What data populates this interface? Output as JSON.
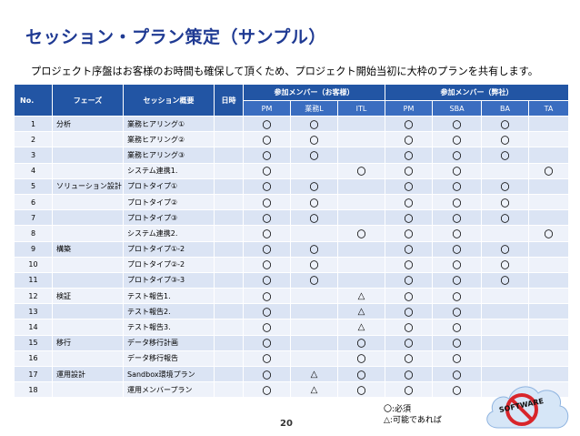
{
  "title": "セッション・プラン策定（サンプル）",
  "subtitle": "プロジェクト序盤はお客様のお時間も確保して頂くため、プロジェクト開始当初に大枠のプランを共有します。",
  "table": {
    "headers": {
      "no": "No.",
      "phase": "フェーズ",
      "session": "セッション概要",
      "date": "日時",
      "client_group": "参加メンバー（お客様）",
      "company_group": "参加メンバー（弊社）"
    },
    "subheaders": {
      "client": [
        "PM",
        "業務L",
        "ITL"
      ],
      "company": [
        "PM",
        "SBA",
        "BA",
        "TA"
      ]
    },
    "rows": [
      {
        "no": "1",
        "phase": "分析",
        "session": "業務ヒアリング①",
        "date": "",
        "marks": [
          "〇",
          "〇",
          "",
          "〇",
          "〇",
          "〇",
          ""
        ]
      },
      {
        "no": "2",
        "phase": "",
        "session": "業務ヒアリング②",
        "date": "",
        "marks": [
          "〇",
          "〇",
          "",
          "〇",
          "〇",
          "〇",
          ""
        ]
      },
      {
        "no": "3",
        "phase": "",
        "session": "業務ヒアリング③",
        "date": "",
        "marks": [
          "〇",
          "〇",
          "",
          "〇",
          "〇",
          "〇",
          ""
        ]
      },
      {
        "no": "4",
        "phase": "",
        "session": "システム連携1.",
        "date": "",
        "marks": [
          "〇",
          "",
          "〇",
          "〇",
          "〇",
          "",
          "〇"
        ]
      },
      {
        "no": "5",
        "phase": "ソリューション設計",
        "session": "プロトタイプ①",
        "date": "",
        "marks": [
          "〇",
          "〇",
          "",
          "〇",
          "〇",
          "〇",
          ""
        ]
      },
      {
        "no": "6",
        "phase": "",
        "session": "プロトタイプ②",
        "date": "",
        "marks": [
          "〇",
          "〇",
          "",
          "〇",
          "〇",
          "〇",
          ""
        ]
      },
      {
        "no": "7",
        "phase": "",
        "session": "プロトタイプ③",
        "date": "",
        "marks": [
          "〇",
          "〇",
          "",
          "〇",
          "〇",
          "〇",
          ""
        ]
      },
      {
        "no": "8",
        "phase": "",
        "session": "システム連携2.",
        "date": "",
        "marks": [
          "〇",
          "",
          "〇",
          "〇",
          "〇",
          "",
          "〇"
        ]
      },
      {
        "no": "9",
        "phase": "構築",
        "session": "プロトタイプ①-2",
        "date": "",
        "marks": [
          "〇",
          "〇",
          "",
          "〇",
          "〇",
          "〇",
          ""
        ]
      },
      {
        "no": "10",
        "phase": "",
        "session": "プロトタイプ②-2",
        "date": "",
        "marks": [
          "〇",
          "〇",
          "",
          "〇",
          "〇",
          "〇",
          ""
        ]
      },
      {
        "no": "11",
        "phase": "",
        "session": "プロトタイプ③-3",
        "date": "",
        "marks": [
          "〇",
          "〇",
          "",
          "〇",
          "〇",
          "〇",
          ""
        ]
      },
      {
        "no": "12",
        "phase": "検証",
        "session": "テスト報告1.",
        "date": "",
        "marks": [
          "〇",
          "",
          "△",
          "〇",
          "〇",
          "",
          ""
        ]
      },
      {
        "no": "13",
        "phase": "",
        "session": "テスト報告2.",
        "date": "",
        "marks": [
          "〇",
          "",
          "△",
          "〇",
          "〇",
          "",
          ""
        ]
      },
      {
        "no": "14",
        "phase": "",
        "session": "テスト報告3.",
        "date": "",
        "marks": [
          "〇",
          "",
          "△",
          "〇",
          "〇",
          "",
          ""
        ]
      },
      {
        "no": "15",
        "phase": "移行",
        "session": "データ移行計画",
        "date": "",
        "marks": [
          "〇",
          "",
          "〇",
          "〇",
          "〇",
          "",
          ""
        ]
      },
      {
        "no": "16",
        "phase": "",
        "session": "データ移行報告",
        "date": "",
        "marks": [
          "〇",
          "",
          "〇",
          "〇",
          "〇",
          "",
          ""
        ]
      },
      {
        "no": "17",
        "phase": "運用設計",
        "session": "Sandbox環境プラン",
        "date": "",
        "marks": [
          "〇",
          "△",
          "〇",
          "〇",
          "〇",
          "",
          ""
        ]
      },
      {
        "no": "18",
        "phase": "",
        "session": "運用メンバープラン",
        "date": "",
        "marks": [
          "〇",
          "△",
          "〇",
          "〇",
          "〇",
          "",
          ""
        ]
      }
    ]
  },
  "legend": {
    "required": "〇:必須",
    "if_possible": "△:可能であれば"
  },
  "page_number": "20",
  "logo": {
    "text": "SOFTWARE",
    "icon": "no-software-cloud-icon"
  },
  "colors": {
    "title": "#1f3a93",
    "header": "#2255a4",
    "subheader": "#3a6dc0",
    "row_odd": "#dbe4f4",
    "row_even": "#eef2fa"
  }
}
